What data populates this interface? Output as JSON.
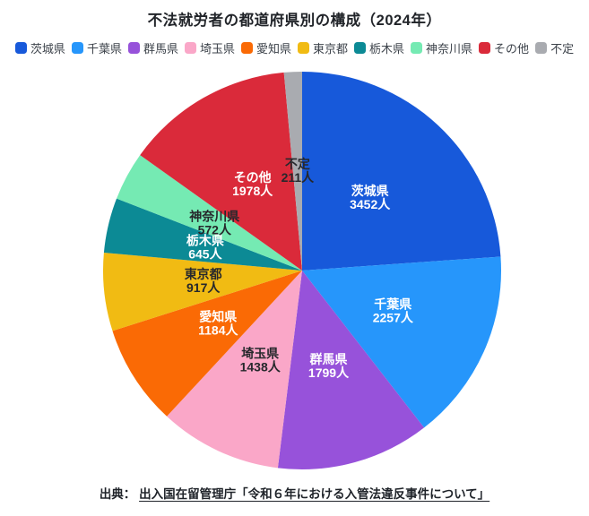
{
  "title": "不法就労者の都道府県別の構成（2024年）",
  "chart_data": {
    "type": "pie",
    "title": "不法就労者の都道府県別の構成（2024年）",
    "categories": [
      "茨城県",
      "千葉県",
      "群馬県",
      "埼玉県",
      "愛知県",
      "東京都",
      "栃木県",
      "神奈川県",
      "その他",
      "不定"
    ],
    "values": [
      3452,
      2257,
      1799,
      1438,
      1184,
      917,
      645,
      572,
      1978,
      211
    ],
    "unit": "人",
    "colors": [
      "#1759da",
      "#2696fb",
      "#9752da",
      "#faa7c8",
      "#fa6a05",
      "#f1bb13",
      "#0c8a95",
      "#75eab3",
      "#da2a3a",
      "#a9abb0"
    ],
    "label_text_colors": [
      "#ffffff",
      "#ffffff",
      "#ffffff",
      "#26282c",
      "#ffffff",
      "#26282c",
      "#ffffff",
      "#26282c",
      "#ffffff",
      "#26282c"
    ],
    "start_angle_deg": -90,
    "direction": "clockwise",
    "legend_position": "top",
    "slice_value_labels": [
      "3452人",
      "2257人",
      "1799人",
      "1438人",
      "1184人",
      "917人",
      "645人",
      "572人",
      "1978人",
      "211人"
    ]
  },
  "source": {
    "prefix": "出典：",
    "link_text": "出入国在留管理庁「令和６年における入管法違反事件について」"
  }
}
